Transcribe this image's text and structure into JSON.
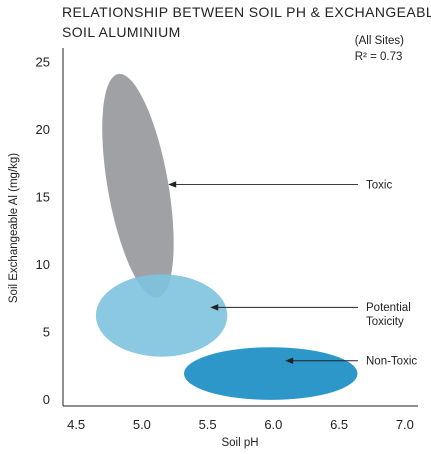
{
  "chart_data": {
    "type": "scatter",
    "title_lines": [
      "RELATIONSHIP BETWEEN SOIL PH & EXCHANGEABLE",
      "SOIL ALUMINIUM"
    ],
    "note_lines": [
      "(All Sites)",
      "R² = 0.73"
    ],
    "xlabel": "Soil pH",
    "ylabel": "Soil Exchangeable Al (mg/kg)",
    "xlim": [
      4.4,
      7.1
    ],
    "ylim": [
      -0.5,
      26
    ],
    "xticks": [
      "4.5",
      "5.0",
      "5.5",
      "6.0",
      "6.5",
      "7.0"
    ],
    "yticks": [
      "0",
      "5",
      "10",
      "15",
      "20",
      "25"
    ],
    "regions": [
      {
        "name": "Toxic",
        "cx": 4.97,
        "cy": 15.8,
        "rx": 0.23,
        "ry": 8.4,
        "rotation_deg": -10,
        "color": "#8f9094",
        "opacity": 0.85
      },
      {
        "name": "Potential Toxicity",
        "cx": 5.15,
        "cy": 6.2,
        "rx": 0.5,
        "ry": 3.05,
        "rotation_deg": 0,
        "color": "#7ec3e0",
        "opacity": 0.9
      },
      {
        "name": "Non-Toxic",
        "cx": 5.98,
        "cy": 1.9,
        "rx": 0.66,
        "ry": 1.95,
        "rotation_deg": 0,
        "color": "#1b8ec5",
        "opacity": 0.92
      }
    ],
    "annotations": [
      {
        "lines": [
          "Toxic"
        ],
        "arrow_x": 5.2,
        "arrow_y": 15.9,
        "label_y": 15.9
      },
      {
        "lines": [
          "Potential",
          "Toxicity"
        ],
        "arrow_x": 5.52,
        "arrow_y": 6.8,
        "label_y": 6.3
      },
      {
        "lines": [
          "Non-Toxic"
        ],
        "arrow_x": 6.09,
        "arrow_y": 2.85,
        "label_y": 2.85
      }
    ]
  }
}
